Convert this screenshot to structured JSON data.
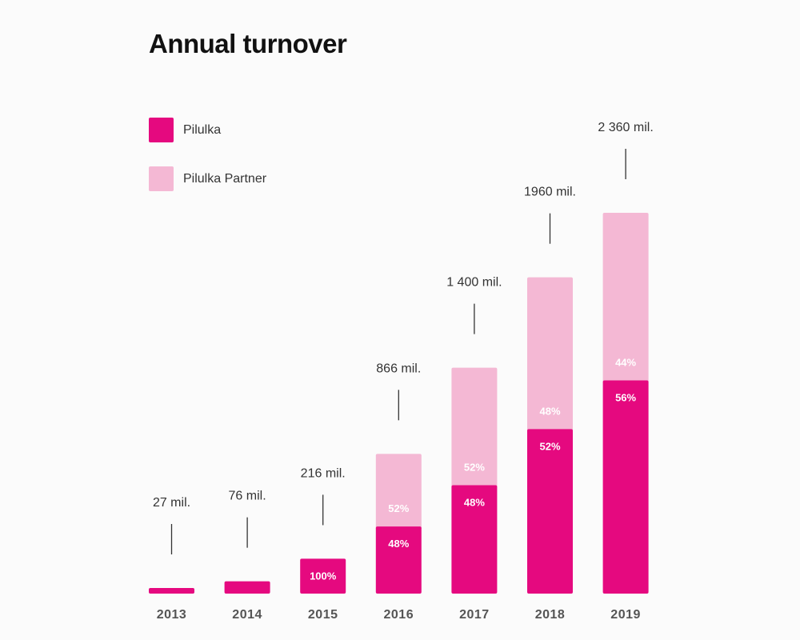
{
  "chart_data": {
    "type": "bar",
    "stacked": true,
    "title": "Annual turnover",
    "categories": [
      "2013",
      "2014",
      "2015",
      "2016",
      "2017",
      "2018",
      "2019"
    ],
    "totals": [
      27,
      76,
      216,
      866,
      1400,
      1960,
      2360
    ],
    "total_labels": [
      "27 mil.",
      "76 mil.",
      "216 mil.",
      "866 mil.",
      "1 400 mil.",
      "1960 mil.",
      "2 360 mil."
    ],
    "series": [
      {
        "name": "Pilulka",
        "color": "#e5097f",
        "share_labels": [
          "",
          "",
          "100%",
          "48%",
          "48%",
          "52%",
          "56%"
        ],
        "values": [
          27,
          76,
          216,
          415.7,
          672,
          1019.2,
          1321.6
        ]
      },
      {
        "name": "Pilulka Partner",
        "color": "#f4b8d4",
        "share_labels": [
          "",
          "",
          "",
          "52%",
          "52%",
          "48%",
          "44%"
        ],
        "values": [
          0,
          0,
          0,
          450.3,
          728,
          940.8,
          1038.4
        ]
      }
    ],
    "legend_position": "top-left",
    "grid": false,
    "xlabel": "",
    "ylabel": ""
  }
}
